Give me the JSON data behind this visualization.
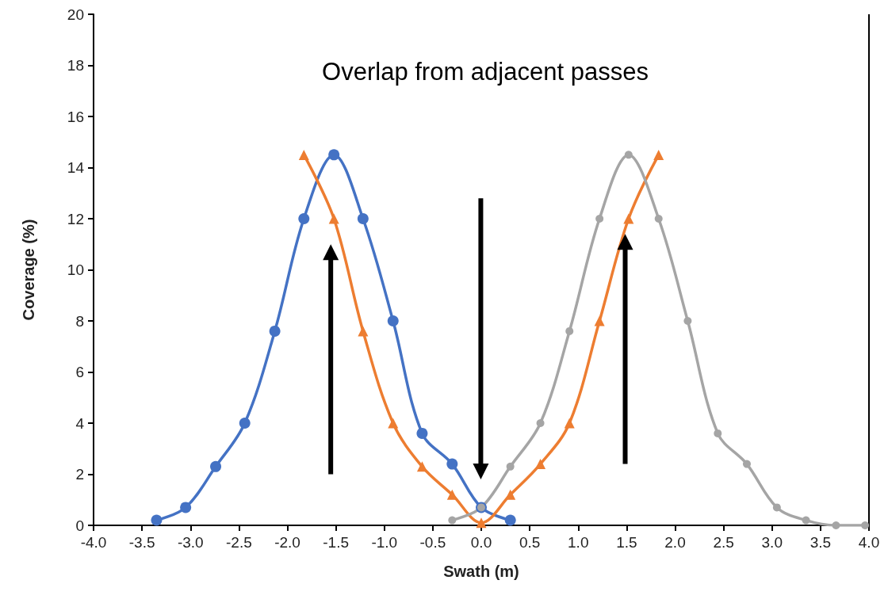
{
  "chart_data": {
    "type": "line",
    "title": "Overlap from adjacent passes",
    "xlabel": "Swath (m)",
    "ylabel": "Coverage (%)",
    "xlim": [
      -4,
      4
    ],
    "xticks": [
      {
        "value": -4,
        "label": "-4.0"
      },
      {
        "value": -3.5,
        "label": "-3.5"
      },
      {
        "value": -3,
        "label": "-3.0"
      },
      {
        "value": -2.5,
        "label": "-2.5"
      },
      {
        "value": -2,
        "label": "-2.0"
      },
      {
        "value": -1.5,
        "label": "-1.5"
      },
      {
        "value": -1,
        "label": "-1.0"
      },
      {
        "value": -0.5,
        "label": "-0.5"
      },
      {
        "value": 0,
        "label": "0.0"
      },
      {
        "value": 0.5,
        "label": "0.5"
      },
      {
        "value": 1,
        "label": "1.0"
      },
      {
        "value": 1.5,
        "label": "1.5"
      },
      {
        "value": 2,
        "label": "2.0"
      },
      {
        "value": 2.5,
        "label": "2.5"
      },
      {
        "value": 3,
        "label": "3.0"
      },
      {
        "value": 3.5,
        "label": "3.5"
      },
      {
        "value": 4,
        "label": "4.0"
      }
    ],
    "ylim": [
      0,
      20
    ],
    "yticks": [
      0,
      2,
      4,
      6,
      8,
      10,
      12,
      14,
      16,
      18,
      20
    ],
    "grid": false,
    "series": [
      {
        "color": "#4472c4",
        "marker": "circle",
        "x": [
          -3.35,
          -3.05,
          -2.74,
          -2.44,
          -2.13,
          -1.83,
          -1.52,
          -1.22,
          -0.91,
          -0.61,
          -0.3,
          0,
          0.3
        ],
        "values": [
          0.2,
          0.7,
          2.3,
          4.0,
          7.6,
          12.0,
          14.5,
          12.0,
          8.0,
          3.6,
          2.4,
          0.7,
          0.2
        ]
      },
      {
        "color": "#ed7d31",
        "marker": "triangle",
        "x": [
          -1.83,
          -1.52,
          -1.22,
          -0.91,
          -0.61,
          -0.3,
          0,
          0.3,
          0.61,
          0.91,
          1.22,
          1.52,
          1.83
        ],
        "values": [
          14.5,
          12.0,
          7.6,
          4.0,
          2.3,
          1.2,
          0.1,
          1.2,
          2.4,
          4.0,
          8.0,
          12.0,
          14.5
        ]
      },
      {
        "color": "#a5a5a5",
        "marker": "circle",
        "x": [
          -0.3,
          0,
          0.3,
          0.61,
          0.91,
          1.22,
          1.52,
          1.83,
          2.13,
          2.44,
          2.74,
          3.05,
          3.35,
          3.66,
          3.96
        ],
        "values": [
          0.2,
          0.7,
          2.3,
          4.0,
          7.6,
          12.0,
          14.5,
          12.0,
          8.0,
          3.6,
          2.4,
          0.7,
          0.2,
          0.0,
          0.0
        ]
      }
    ]
  }
}
